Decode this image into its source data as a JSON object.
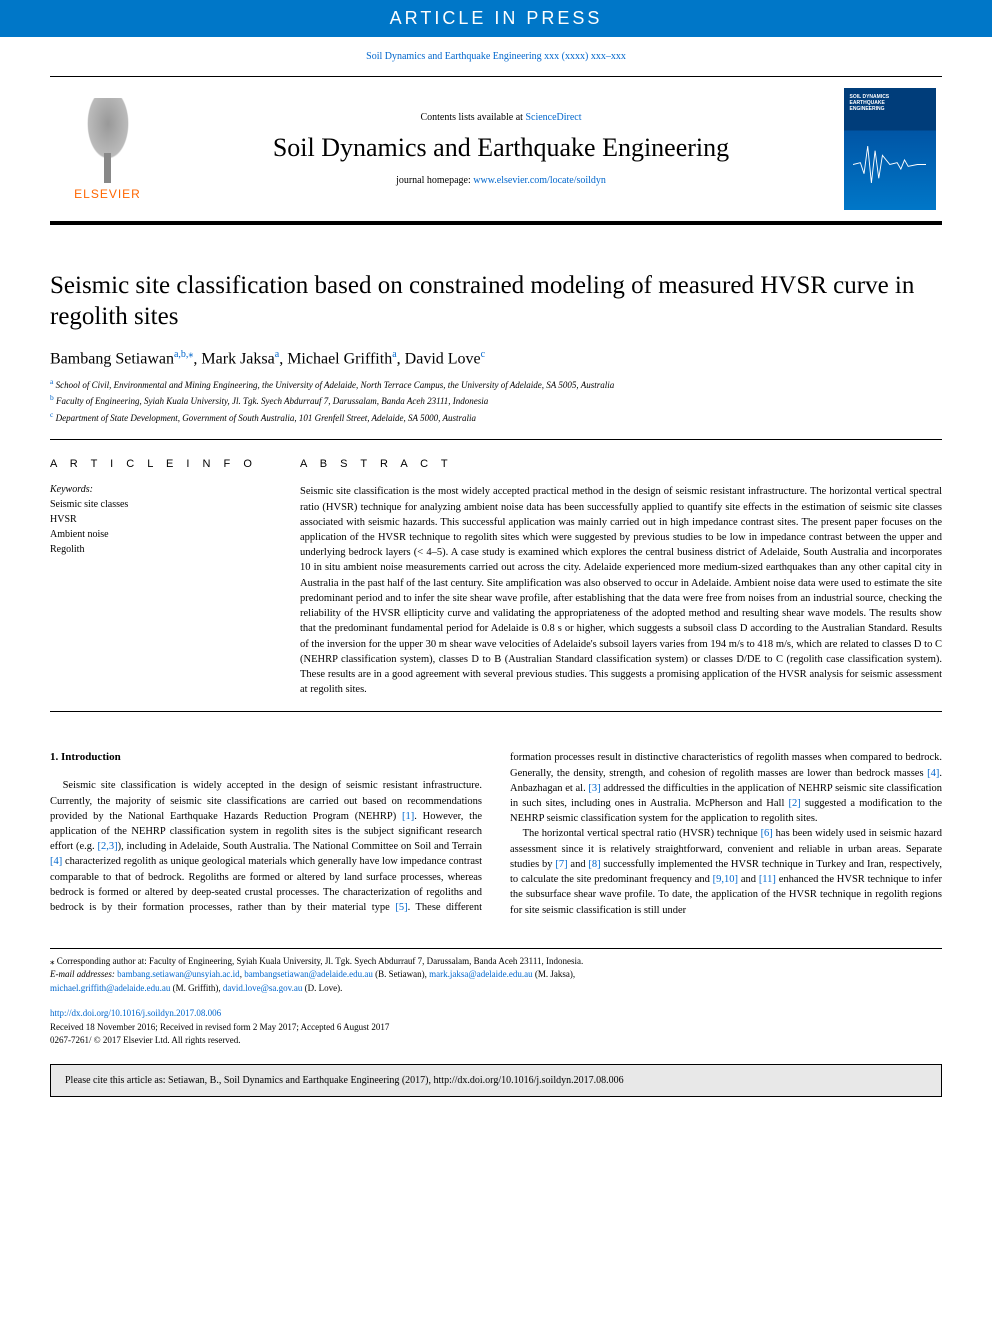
{
  "banner": "ARTICLE IN PRESS",
  "topCitation": "Soil Dynamics and Earthquake Engineering xxx (xxxx) xxx–xxx",
  "header": {
    "publisherName": "ELSEVIER",
    "contentsPrefix": "Contents lists available at ",
    "contentsLink": "ScienceDirect",
    "journal": "Soil Dynamics and Earthquake Engineering",
    "homepagePrefix": "journal homepage: ",
    "homepageLink": "www.elsevier.com/locate/soildyn",
    "coverTitle": "SOIL DYNAMICS EARTHQUAKE ENGINEERING"
  },
  "article": {
    "title": "Seismic site classification based on constrained modeling of measured HVSR curve in regolith sites",
    "authorsParts": [
      {
        "t": "Bambang Setiawan",
        "s": "a,b,⁎"
      },
      {
        "t": ", Mark Jaksa",
        "s": "a"
      },
      {
        "t": ", Michael Griffith",
        "s": "a"
      },
      {
        "t": ", David Love",
        "s": "c"
      }
    ],
    "affiliations": [
      {
        "s": "a",
        "t": "School of Civil, Environmental and Mining Engineering, the University of Adelaide, North Terrace Campus, the University of Adelaide, SA 5005, Australia"
      },
      {
        "s": "b",
        "t": "Faculty of Engineering, Syiah Kuala University, Jl. Tgk. Syech Abdurrauf 7, Darussalam, Banda Aceh 23111, Indonesia"
      },
      {
        "s": "c",
        "t": "Department of State Development, Government of South Australia, 101 Grenfell Street, Adelaide, SA 5000, Australia"
      }
    ]
  },
  "info": {
    "head": "A R T I C L E  I N F O",
    "kwHead": "Keywords:",
    "keywords": [
      "Seismic site classes",
      "HVSR",
      "Ambient noise",
      "Regolith"
    ]
  },
  "abstract": {
    "head": "A B S T R A C T",
    "text": "Seismic site classification is the most widely accepted practical method in the design of seismic resistant infrastructure. The horizontal vertical spectral ratio (HVSR) technique for analyzing ambient noise data has been successfully applied to quantify site effects in the estimation of seismic site classes associated with seismic hazards. This successful application was mainly carried out in high impedance contrast sites. The present paper focuses on the application of the HVSR technique to regolith sites which were suggested by previous studies to be low in impedance contrast between the upper and underlying bedrock layers (< 4–5). A case study is examined which explores the central business district of Adelaide, South Australia and incorporates 10 in situ ambient noise measurements carried out across the city. Adelaide experienced more medium-sized earthquakes than any other capital city in Australia in the past half of the last century. Site amplification was also observed to occur in Adelaide. Ambient noise data were used to estimate the site predominant period and to infer the site shear wave profile, after establishing that the data were free from noises from an industrial source, checking the reliability of the HVSR ellipticity curve and validating the appropriateness of the adopted method and resulting shear wave models. The results show that the predominant fundamental period for Adelaide is 0.8 s or higher, which suggests a subsoil class D according to the Australian Standard. Results of the inversion for the upper 30 m shear wave velocities of Adelaide's subsoil layers varies from 194 m/s to 418 m/s, which are related to classes D to C (NEHRP classification system), classes D to B (Australian Standard classification system) or classes D/DE to C (regolith case classification system). These results are in a good agreement with several previous studies. This suggests a promising application of the HVSR analysis for seismic assessment at regolith sites."
  },
  "body": {
    "head1": "1. Introduction",
    "p1a": "Seismic site classification is widely accepted in the design of seismic resistant infrastructure. Currently, the majority of seismic site classifications are carried out based on recommendations provided by the National Earthquake Hazards Reduction Program (NEHRP) ",
    "r1": "[1]",
    "p1b": ". However, the application of the NEHRP classification system in regolith sites is the subject significant research effort (e.g. ",
    "r23": "[2,3]",
    "p1c": "), including in Adelaide, South Australia. The National Committee on Soil and Terrain ",
    "r4": "[4]",
    "p1d": " characterized regolith as unique geological materials which generally have low impedance contrast comparable to that of bedrock. Regoliths are formed or altered by land surface processes, whereas bedrock is formed or altered by deep-seated crustal processes. The characterization of regoliths and bedrock is by their formation processes, rather than by their material type ",
    "r5": "[5]",
    "p1e": ". These different formation processes result in distinctive characteristics of regolith masses when compared to bedrock. Generally, the density, strength, and cohesion of regolith masses are lower than bedrock masses ",
    "r4b": "[4]",
    "p1f": ". Anbazhagan et al. ",
    "r3": "[3]",
    "p1g": " addressed the difficulties in the application of NEHRP seismic site classification in such sites, including ones in Australia. McPherson and Hall ",
    "r2": "[2]",
    "p1h": " suggested a modification to the NEHRP seismic classification system for the application to regolith sites.",
    "p2a": "The horizontal vertical spectral ratio (HVSR) technique ",
    "r6": "[6]",
    "p2b": " has been widely used in seismic hazard assessment since it is relatively straightforward, convenient and reliable in urban areas. Separate studies by ",
    "r7": "[7]",
    "p2c": " and ",
    "r8": "[8]",
    "p2d": " successfully implemented the HVSR technique in Turkey and Iran, respectively, to calculate the site predominant frequency and ",
    "r910": "[9,10]",
    "p2e": " and ",
    "r11": "[11]",
    "p2f": " enhanced the HVSR technique to infer the subsurface shear wave profile. To date, the application of the HVSR technique in regolith regions for site seismic classification is still under"
  },
  "foot": {
    "corr": "⁎ Corresponding author at: Faculty of Engineering, Syiah Kuala University, Jl. Tgk. Syech Abdurrauf 7, Darussalam, Banda Aceh 23111, Indonesia.",
    "emailsLabel": "E-mail addresses: ",
    "emails": [
      {
        "e": "bambang.setiawan@unsyiah.ac.id",
        "after": ", "
      },
      {
        "e": "bambangsetiawan@adelaide.edu.au",
        "after": " (B. Setiawan), "
      },
      {
        "e": "mark.jaksa@adelaide.edu.au",
        "after": " (M. Jaksa),"
      }
    ],
    "emails2": [
      {
        "e": "michael.griffith@adelaide.edu.au",
        "after": " (M. Griffith), "
      },
      {
        "e": "david.love@sa.gov.au",
        "after": " (D. Love)."
      }
    ],
    "doi": "http://dx.doi.org/10.1016/j.soildyn.2017.08.006",
    "received": "Received 18 November 2016; Received in revised form 2 May 2017; Accepted 6 August 2017",
    "copyright": "0267-7261/ © 2017 Elsevier Ltd. All rights reserved."
  },
  "citeBox": "Please cite this article as: Setiawan, B., Soil Dynamics and Earthquake Engineering (2017), http://dx.doi.org/10.1016/j.soildyn.2017.08.006"
}
